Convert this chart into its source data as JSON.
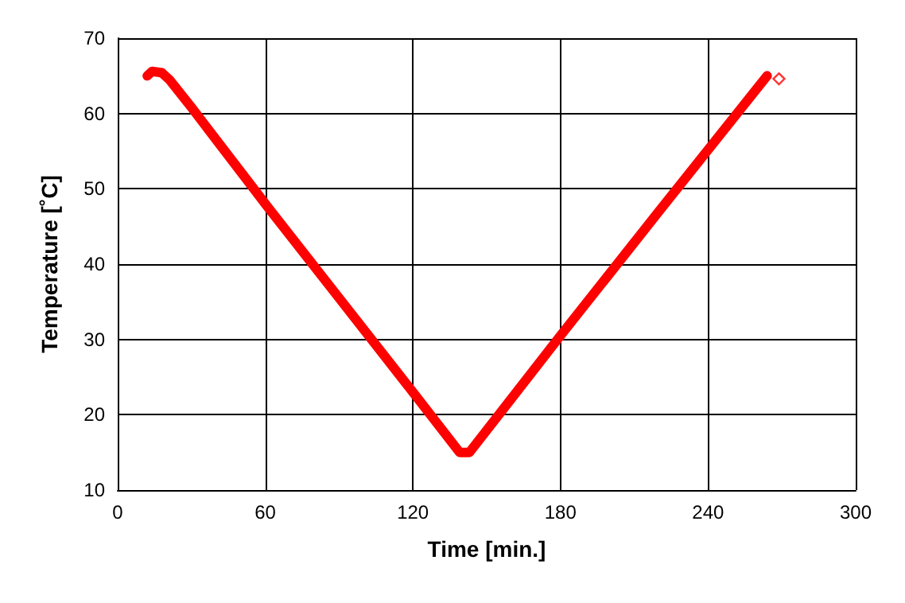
{
  "chart_data": {
    "type": "line",
    "xlabel": "Time [min.]",
    "ylabel": "Temperature [˚C]",
    "xlim": [
      0,
      300
    ],
    "xticks": [
      0,
      60,
      120,
      180,
      240,
      300
    ],
    "ylim": [
      10,
      70
    ],
    "yticks": [
      10,
      20,
      30,
      40,
      50,
      60,
      70
    ],
    "grid": true,
    "line_style": "solid",
    "series": [
      {
        "color": "#ff0000",
        "marker": "none",
        "x": [
          12,
          14,
          18,
          21,
          30,
          60,
          90,
          120,
          139,
          143,
          180,
          220,
          264
        ],
        "values": [
          65,
          65.6,
          65.4,
          64.5,
          60.8,
          48,
          35.5,
          23,
          15,
          15,
          30.5,
          47,
          65
        ]
      },
      {
        "type": "scatter",
        "color": "#ff0000",
        "marker": "diamond",
        "x": [
          268.8
        ],
        "values": [
          64.6
        ]
      }
    ]
  }
}
